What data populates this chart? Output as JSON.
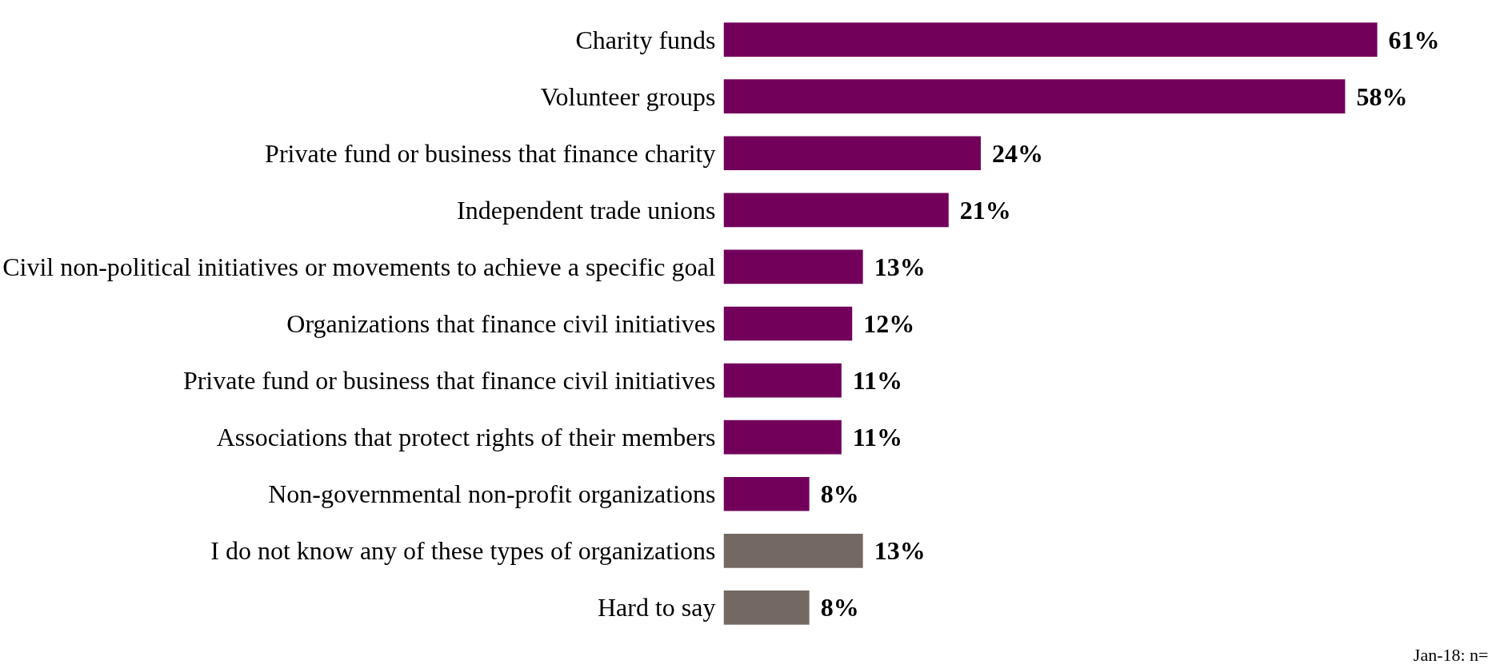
{
  "chart_data": {
    "type": "bar",
    "orientation": "horizontal",
    "categories": [
      "Charity funds",
      "Volunteer groups",
      "Private fund or business that finance charity",
      "Independent trade unions",
      "Civil non-political initiatives or movements to achieve a specific goal",
      "Organizations that finance civil initiatives",
      "Private fund or business that finance civil initiatives",
      "Associations that protect rights of their members",
      "Non-governmental non-profit organizations",
      "I do not know any of these types of organizations",
      "Hard to say"
    ],
    "values": [
      61,
      58,
      24,
      21,
      13,
      12,
      11,
      11,
      8,
      13,
      8
    ],
    "colors": [
      "#72005b",
      "#72005b",
      "#72005b",
      "#72005b",
      "#72005b",
      "#72005b",
      "#72005b",
      "#72005b",
      "#72005b",
      "#736862",
      "#736862"
    ],
    "value_labels": [
      "61%",
      "58%",
      "24%",
      "21%",
      "13%",
      "12%",
      "11%",
      "11%",
      "8%",
      "13%",
      "8%"
    ],
    "tick_labels": "y",
    "grid": false,
    "annotations": [
      "Jan-18: n="
    ]
  }
}
